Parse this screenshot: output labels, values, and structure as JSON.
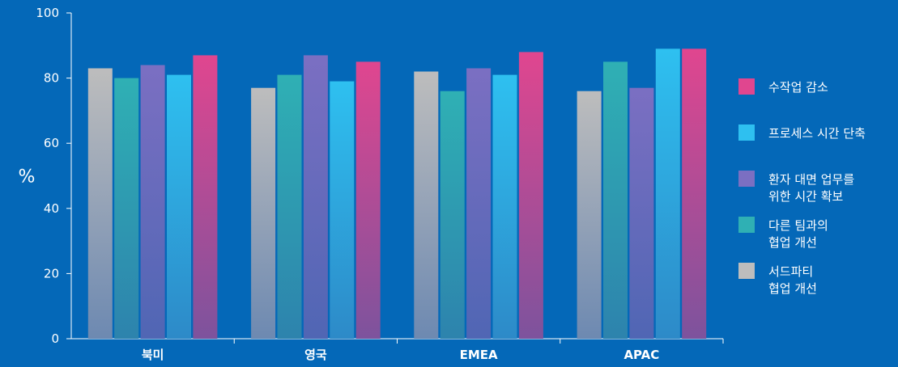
{
  "chart_data": {
    "type": "bar",
    "title": "",
    "xlabel": "",
    "ylabel": "%",
    "ylim": [
      0,
      100
    ],
    "yticks": [
      0,
      20,
      40,
      60,
      80,
      100
    ],
    "categories": [
      "북미",
      "영국",
      "EMEA",
      "APAC"
    ],
    "grid": false,
    "legend_position": "right",
    "series": [
      {
        "name": "서드파티\n협업 개선",
        "color": "#bdbdbd",
        "values": [
          83,
          77,
          82,
          76
        ]
      },
      {
        "name": "다른 팀과의\n협업 개선",
        "color": "#2fb0b4",
        "values": [
          80,
          81,
          76,
          85
        ]
      },
      {
        "name": "환자 대면 업무를\n위한 시간 확보",
        "color": "#7b6fc2",
        "values": [
          84,
          87,
          83,
          77
        ]
      },
      {
        "name": "프로세스 시간 단축",
        "color": "#2ec0f0",
        "values": [
          81,
          79,
          81,
          89
        ]
      },
      {
        "name": "수작업 감소",
        "color": "#e0468f",
        "values": [
          87,
          85,
          88,
          89
        ]
      }
    ],
    "legend_order": [
      4,
      3,
      2,
      1,
      0
    ]
  }
}
